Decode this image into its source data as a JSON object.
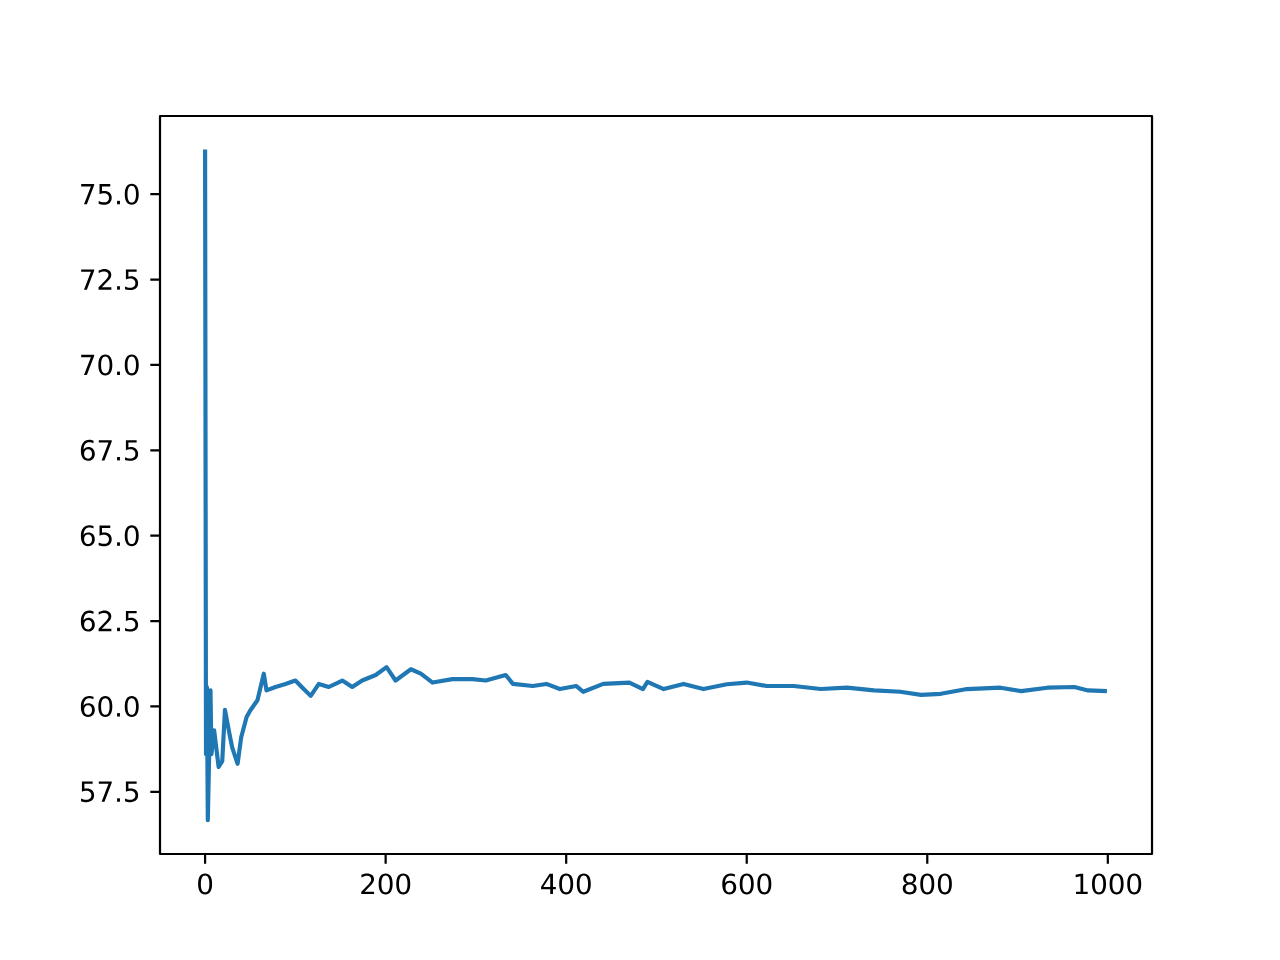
{
  "chart_data": {
    "type": "line",
    "x": [
      0,
      1,
      2,
      3,
      6,
      7,
      10,
      15,
      19,
      22,
      27,
      30,
      36,
      40,
      46,
      50,
      58,
      65,
      68,
      78,
      89,
      100,
      107,
      117,
      126,
      137,
      152,
      163,
      174,
      189,
      201,
      211,
      228,
      239,
      252,
      274,
      296,
      311,
      333,
      341,
      363,
      378,
      393,
      411,
      419,
      441,
      470,
      485,
      490,
      508,
      530,
      552,
      578,
      600,
      622,
      652,
      682,
      711,
      741,
      770,
      793,
      815,
      844,
      881,
      904,
      933,
      963,
      978,
      999
    ],
    "series": [
      {
        "color": "#1f77b4",
        "values": [
          76.31,
          58.6,
          60.57,
          56.67,
          60.47,
          58.6,
          59.3,
          58.23,
          58.4,
          59.9,
          59.2,
          58.8,
          58.32,
          59.1,
          59.69,
          59.88,
          60.18,
          60.96,
          60.47,
          60.57,
          60.66,
          60.76,
          60.57,
          60.31,
          60.66,
          60.57,
          60.76,
          60.57,
          60.76,
          60.92,
          61.15,
          60.76,
          61.09,
          60.96,
          60.7,
          60.8,
          60.8,
          60.76,
          60.92,
          60.66,
          60.6,
          60.66,
          60.51,
          60.6,
          60.43,
          60.66,
          60.7,
          60.51,
          60.72,
          60.51,
          60.66,
          60.51,
          60.65,
          60.7,
          60.6,
          60.6,
          60.51,
          60.55,
          60.47,
          60.43,
          60.34,
          60.37,
          60.51,
          60.55,
          60.45,
          60.55,
          60.57,
          60.47,
          60.45
        ]
      }
    ],
    "xlim": [
      -49.95,
      1048.95
    ],
    "ylim": [
      55.68,
      77.29
    ],
    "xticks": [
      0,
      200,
      400,
      600,
      800,
      1000
    ],
    "yticks": [
      57.5,
      {
        "value": 60,
        "label": "60.0"
      },
      62.5,
      {
        "value": 65,
        "label": "65.0"
      },
      67.5,
      {
        "value": 70,
        "label": "70.0"
      },
      72.5,
      {
        "value": 75,
        "label": "75.0"
      }
    ],
    "marker": "none",
    "line_style": "solid"
  }
}
